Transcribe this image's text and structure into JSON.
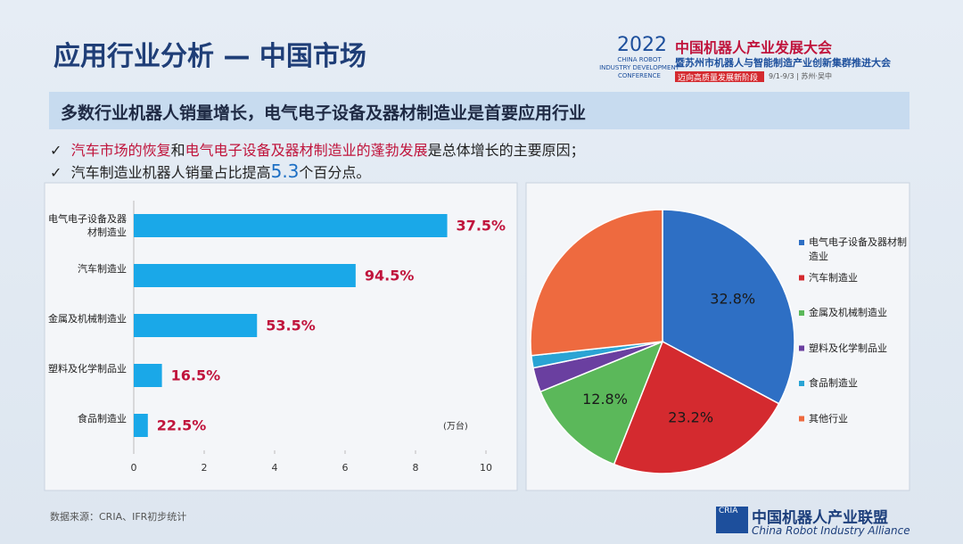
{
  "slide": {
    "title": "应用行业分析 — 中国市场",
    "banner": "多数行业机器人销量增长，电气电子设备及器材制造业是首要应用行业",
    "bullets": [
      [
        "汽车市场的恢复",
        "和",
        "电气电子设备及器材制造业的蓬勃发展",
        "是总体增长的主要原因；"
      ],
      [
        "汽车制造业机器人销量占比提高",
        "5.3",
        "个百分点。"
      ]
    ],
    "logo": {
      "year": "2022",
      "en": [
        "CHINA ROBOT",
        "INDUSTRY DEVELOPMENT",
        "CONFERENCE"
      ],
      "cn": "中国机器人产业发展大会",
      "cn_sub": "暨苏州市机器人与智能制造产业创新集群推进大会",
      "slogan": "迈向高质量发展新阶段",
      "date": "9/1-9/3 | 苏州·吴中"
    },
    "source": "数据来源：CRIA、IFR初步统计",
    "footer": {
      "abbr": "CRIA",
      "cn": "中国机器人产业联盟",
      "en": "China Robot Industry Alliance"
    }
  },
  "chart_data": [
    {
      "type": "hbar",
      "categories": [
        "电气电子设备及器材制造业",
        "汽车制造业",
        "金属及机械制造业",
        "塑料及化学制品业",
        "食品制造业"
      ],
      "values": [
        8.9,
        6.3,
        3.5,
        0.8,
        0.4
      ],
      "color": "#1aa8e8",
      "annotations": [
        "37.5%",
        "94.5%",
        "53.5%",
        "16.5%",
        "22.5%"
      ],
      "unit": "(万台)",
      "xlim": [
        0,
        10
      ],
      "xticks": [
        0,
        2,
        4,
        6,
        8,
        10
      ]
    },
    {
      "type": "pie",
      "categories": [
        "电气电子设备及器材制造业",
        "汽车制造业",
        "金属及机械制造业",
        "塑料及化学制品业",
        "食品制造业",
        "其他行业"
      ],
      "values": [
        32.8,
        23.2,
        12.8,
        3.0,
        1.5,
        26.7
      ],
      "value_labels": [
        "32.8%",
        "23.2%",
        "12.8%",
        null,
        null,
        null
      ],
      "colors": [
        "#2e6fc4",
        "#d42a2f",
        "#5bb85a",
        "#6a3fa0",
        "#2aa4d4",
        "#ee6a3f"
      ]
    }
  ]
}
